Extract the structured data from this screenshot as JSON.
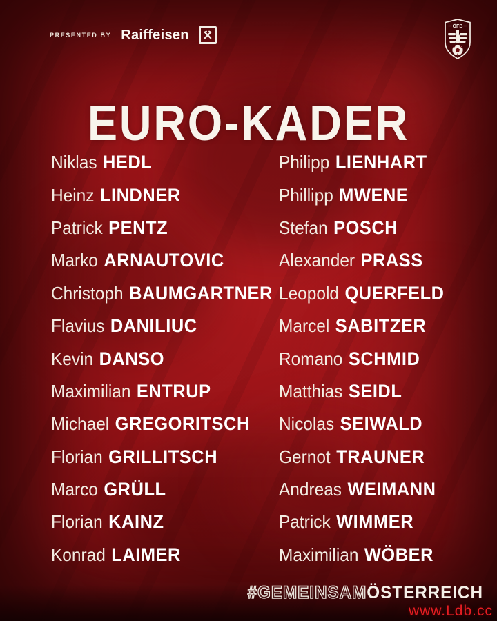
{
  "colors": {
    "background_red": "#8c1014",
    "accent_bright_red": "#a31418",
    "text_white": "#f8f4ec",
    "text_warm_white": "#f2ebe1",
    "watermark_red": "#e41d22"
  },
  "header": {
    "presented_by_label": "PRESENTED BY",
    "sponsor_name": "Raiffeisen",
    "sponsor_logo_icon": "raiffeisen-gable-cross-icon",
    "crest_icon": "oefb-crest-icon",
    "crest_label": "ÖFB"
  },
  "title": "EURO-KADER",
  "squad": {
    "left": [
      {
        "first": "Niklas",
        "last": "HEDL"
      },
      {
        "first": "Heinz",
        "last": "LINDNER"
      },
      {
        "first": "Patrick",
        "last": "PENTZ"
      },
      {
        "first": "Marko",
        "last": "ARNAUTOVIC"
      },
      {
        "first": "Christoph",
        "last": "BAUMGARTNER"
      },
      {
        "first": "Flavius",
        "last": "DANILIUC"
      },
      {
        "first": "Kevin",
        "last": "DANSO"
      },
      {
        "first": "Maximilian",
        "last": "ENTRUP"
      },
      {
        "first": "Michael",
        "last": "GREGORITSCH"
      },
      {
        "first": "Florian",
        "last": "GRILLITSCH"
      },
      {
        "first": "Marco",
        "last": "GRÜLL"
      },
      {
        "first": "Florian",
        "last": "KAINZ"
      },
      {
        "first": "Konrad",
        "last": "LAIMER"
      }
    ],
    "right": [
      {
        "first": "Philipp",
        "last": "LIENHART"
      },
      {
        "first": "Phillipp",
        "last": "MWENE"
      },
      {
        "first": "Stefan",
        "last": "POSCH"
      },
      {
        "first": "Alexander",
        "last": "PRASS"
      },
      {
        "first": "Leopold",
        "last": "QUERFELD"
      },
      {
        "first": "Marcel",
        "last": "SABITZER"
      },
      {
        "first": "Romano",
        "last": "SCHMID"
      },
      {
        "first": "Matthias",
        "last": "SEIDL"
      },
      {
        "first": "Nicolas",
        "last": "SEIWALD"
      },
      {
        "first": "Gernot",
        "last": "TRAUNER"
      },
      {
        "first": "Andreas",
        "last": "WEIMANN"
      },
      {
        "first": "Patrick",
        "last": "WIMMER"
      },
      {
        "first": "Maximilian",
        "last": "WÖBER"
      }
    ]
  },
  "footer": {
    "hashtag_outline": "#GEMEINSAM",
    "hashtag_solid": "ÖSTERREICH",
    "watermark": "www.Ldb.cc"
  }
}
